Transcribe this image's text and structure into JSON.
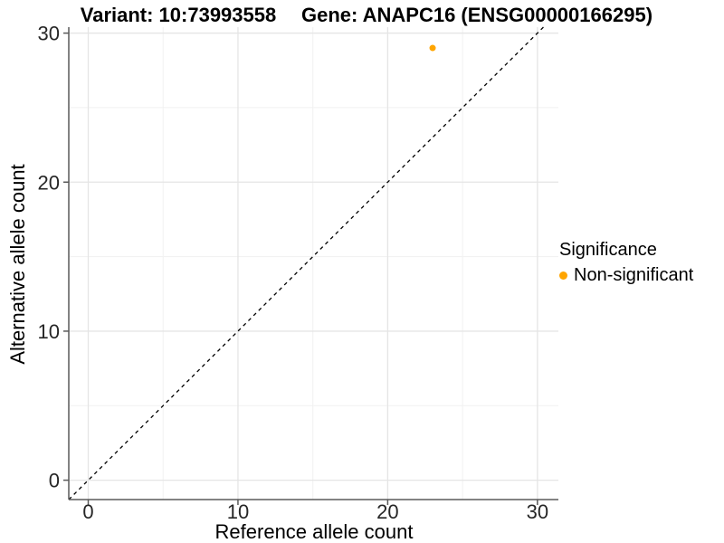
{
  "header": {
    "variant_title": "Variant: 10:73993558",
    "gene_title": "Gene: ANAPC16 (ENSG00000166295)"
  },
  "chart_data": {
    "type": "scatter",
    "title_left": "Variant: 10:73993558",
    "title_right": "Gene: ANAPC16 (ENSG00000166295)",
    "xlabel": "Reference allele count",
    "ylabel": "Alternative allele count",
    "xlim": [
      -1.3,
      31.4
    ],
    "ylim": [
      -1.3,
      30.4
    ],
    "x_ticks": [
      0,
      10,
      20,
      30
    ],
    "y_ticks": [
      0,
      10,
      20,
      30
    ],
    "x_minor_ticks": [
      5,
      15,
      25
    ],
    "y_minor_ticks": [
      5,
      15,
      25
    ],
    "grid": true,
    "identity_line": {
      "slope": 1,
      "intercept": 0,
      "style": "dashed",
      "color": "#000000"
    },
    "series": [
      {
        "name": "Non-significant",
        "color": "#FFA500",
        "points": [
          {
            "x": 23,
            "y": 29
          }
        ]
      }
    ],
    "legend": {
      "position": "right",
      "title": "Significance",
      "entries": [
        {
          "label": "Non-significant",
          "color": "#FFA500"
        }
      ]
    },
    "colors": {
      "grid_major": "#E5E5E5",
      "grid_minor": "#F1F1F1",
      "axis_line": "#5A5A5A",
      "tick_text": "#262626"
    }
  }
}
